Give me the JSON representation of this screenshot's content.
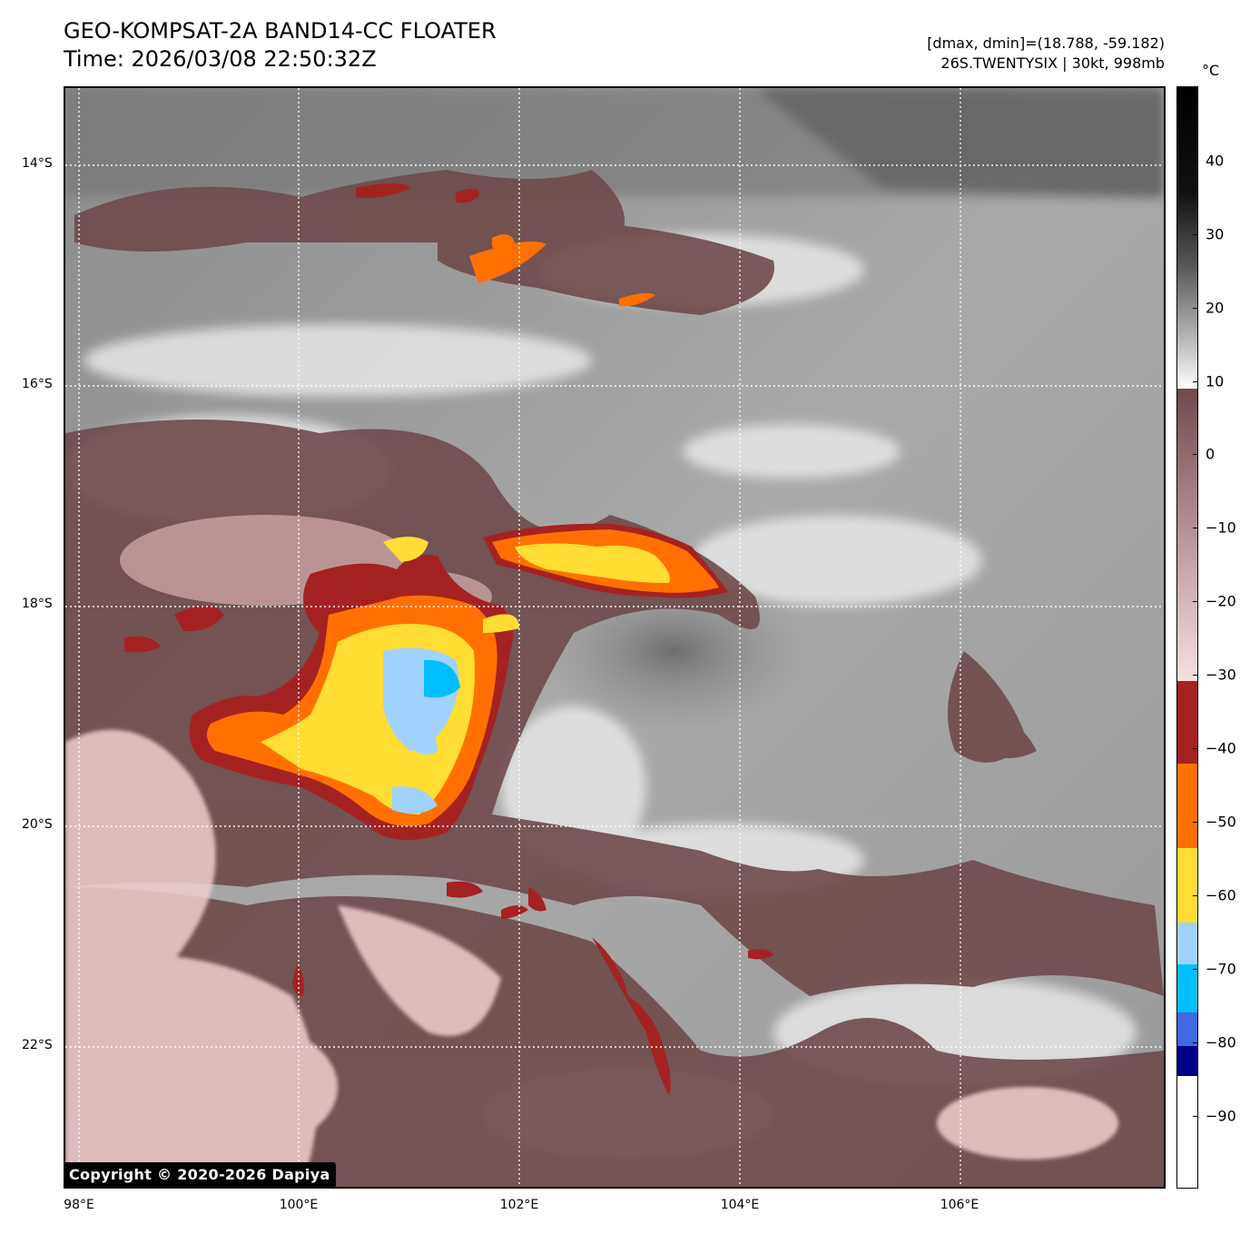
{
  "header": {
    "title_line1": "GEO-KOMPSAT-2A BAND14-CC FLOATER",
    "title_line2": "Time: 2026/03/08 22:50:32Z",
    "info_line1": "[dmax, dmin]=(18.788, -59.182)",
    "info_line2": "26S.TWENTYSIX | 30kt, 998mb"
  },
  "map": {
    "lat_labels": [
      "14°S",
      "16°S",
      "18°S",
      "20°S",
      "22°S"
    ],
    "lon_labels": [
      "98°E",
      "100°E",
      "102°E",
      "104°E",
      "106°E"
    ],
    "copyright": "Copyright © 2020-2026 Dapiya",
    "grid_style": "dotted white",
    "lat_range": [
      -23.3,
      -13.3
    ],
    "lon_range": [
      97.9,
      107.9
    ]
  },
  "colorbar": {
    "unit": "°C",
    "ticks": [
      "40",
      "30",
      "20",
      "10",
      "0",
      "−10",
      "−20",
      "−30",
      "−40",
      "−50",
      "−60",
      "−70",
      "−80",
      "−90"
    ],
    "range": [
      -100,
      50
    ],
    "colors": {
      "warm_gray_top": "#000000",
      "gray_mid": "#7a7a7a",
      "white": "#ffffff",
      "brown": "#6e4a4a",
      "pink": "#f2d6d6",
      "dark_red": "#a52222",
      "orange": "#ff7000",
      "yellow": "#ffdd33",
      "light_blue": "#9fd2ff",
      "cyan": "#00bfff",
      "royal_blue": "#4169e1",
      "navy": "#00008b",
      "floor_white": "#ffffff"
    }
  }
}
